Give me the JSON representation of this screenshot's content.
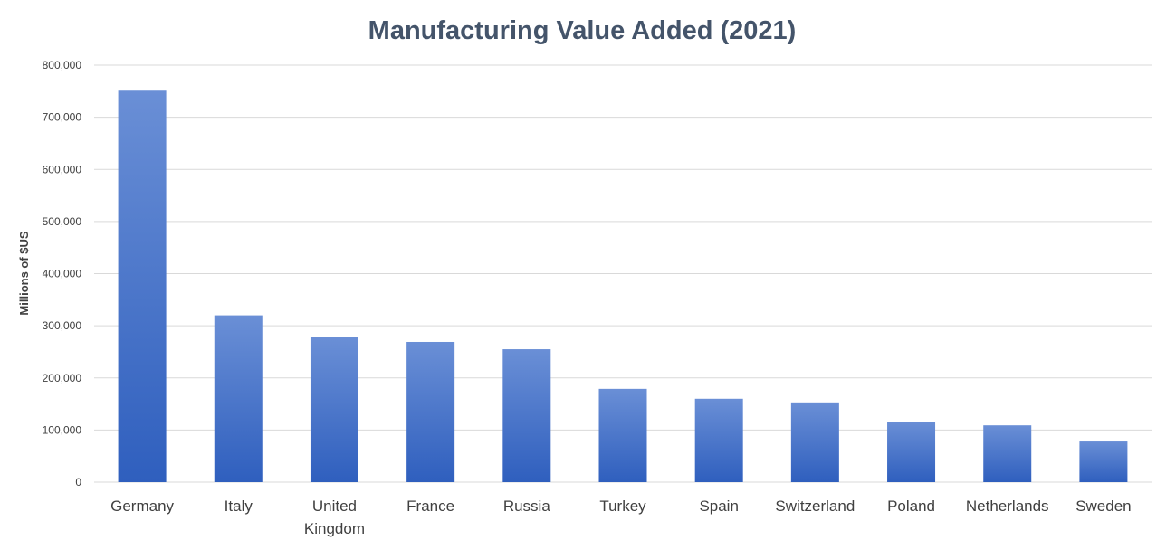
{
  "chart_data": {
    "type": "bar",
    "title": "Manufacturing Value Added (2021)",
    "xlabel": "",
    "ylabel": "Millions of $US",
    "ylim": [
      0,
      800000
    ],
    "yticks": [
      "0",
      "100,000",
      "200,000",
      "300,000",
      "400,000",
      "500,000",
      "600,000",
      "700,000",
      "800,000"
    ],
    "ytick_values": [
      0,
      100000,
      200000,
      300000,
      400000,
      500000,
      600000,
      700000,
      800000
    ],
    "categories": [
      "Germany",
      "Italy",
      "United Kingdom",
      "France",
      "Russia",
      "Turkey",
      "Spain",
      "Switzerland",
      "Poland",
      "Netherlands",
      "Sweden"
    ],
    "values": [
      751000,
      320000,
      278000,
      269000,
      255000,
      179000,
      160000,
      153000,
      116000,
      109000,
      78000
    ],
    "grid": true,
    "legend": "none",
    "colors": {
      "bar_top": "#6a8fd6",
      "bar_bottom": "#2f5fbe",
      "title": "#44546a",
      "axis_text": "#404040",
      "gridline": "#d9d9d9"
    }
  }
}
